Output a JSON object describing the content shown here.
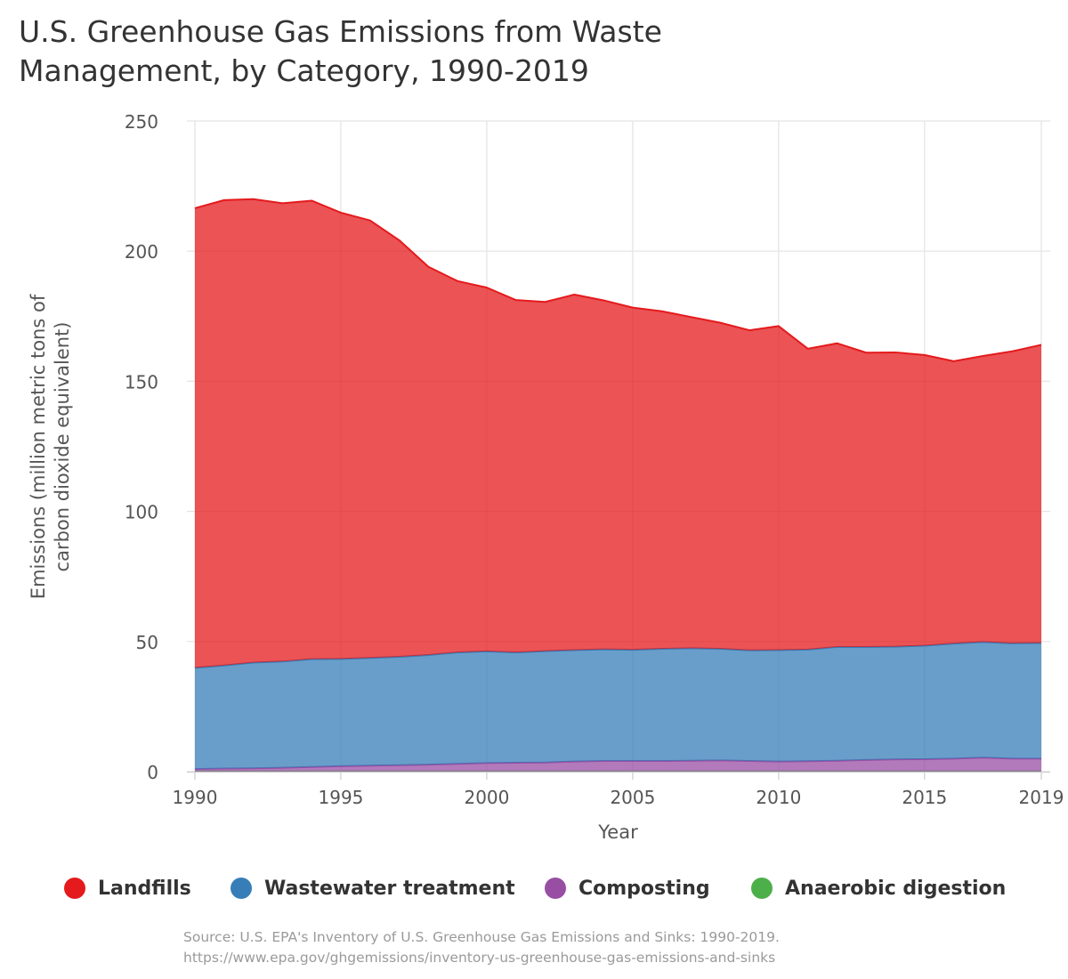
{
  "title_lines": [
    "U.S. Greenhouse Gas Emissions from Waste",
    "Management, by Category, 1990-2019"
  ],
  "source_lines": [
    "Source: U.S. EPA's Inventory of U.S. Greenhouse Gas Emissions and Sinks: 1990-2019.",
    "https://www.epa.gov/ghgemissions/inventory-us-greenhouse-gas-emissions-and-sinks"
  ],
  "chart_data": {
    "type": "area",
    "stacked": true,
    "title": "U.S. Greenhouse Gas Emissions from Waste Management, by Category, 1990-2019",
    "xlabel": "Year",
    "ylabel": "Emissions (million metric tons of carbon dioxide equivalent)",
    "ylim": [
      0,
      250
    ],
    "xlim": [
      1990,
      2019
    ],
    "x_ticks": [
      1990,
      1995,
      2000,
      2005,
      2010,
      2015,
      2019
    ],
    "y_ticks": [
      0,
      50,
      100,
      150,
      200,
      250
    ],
    "grid": true,
    "legend": "bottom",
    "x": [
      1990,
      1991,
      1992,
      1993,
      1994,
      1995,
      1996,
      1997,
      1998,
      1999,
      2000,
      2001,
      2002,
      2003,
      2004,
      2005,
      2006,
      2007,
      2008,
      2009,
      2010,
      2011,
      2012,
      2013,
      2014,
      2015,
      2016,
      2017,
      2018,
      2019
    ],
    "series": [
      {
        "name": "Anaerobic digestion",
        "color": "#4daf4a",
        "values": [
          0.1,
          0.1,
          0.1,
          0.1,
          0.1,
          0.1,
          0.1,
          0.1,
          0.1,
          0.1,
          0.1,
          0.1,
          0.1,
          0.1,
          0.1,
          0.1,
          0.1,
          0.1,
          0.1,
          0.1,
          0.1,
          0.1,
          0.1,
          0.1,
          0.1,
          0.1,
          0.1,
          0.1,
          0.1,
          0.1
        ]
      },
      {
        "name": "Composting",
        "color": "#984ea3",
        "values": [
          0.9,
          1.1,
          1.2,
          1.4,
          1.7,
          2.0,
          2.2,
          2.4,
          2.6,
          2.9,
          3.2,
          3.3,
          3.4,
          3.8,
          4.0,
          4.0,
          4.0,
          4.1,
          4.2,
          4.0,
          3.8,
          3.9,
          4.1,
          4.4,
          4.6,
          4.7,
          4.9,
          5.3,
          4.9,
          4.9
        ]
      },
      {
        "name": "Wastewater treatment",
        "color": "#377eb8",
        "values": [
          38.9,
          39.6,
          40.6,
          40.8,
          41.4,
          41.2,
          41.4,
          41.6,
          42.1,
          42.8,
          42.9,
          42.4,
          42.8,
          42.8,
          42.9,
          42.7,
          43.1,
          43.2,
          42.9,
          42.5,
          42.8,
          42.9,
          43.7,
          43.4,
          43.3,
          43.6,
          44.2,
          44.4,
          44.3,
          44.4
        ]
      },
      {
        "name": "Landfills",
        "color": "#e41a1c",
        "values": [
          176.6,
          178.8,
          178.1,
          176.1,
          176.2,
          171.5,
          168.1,
          160.1,
          149.2,
          142.7,
          139.8,
          135.4,
          134.2,
          136.6,
          134.1,
          131.5,
          129.7,
          127.3,
          125.3,
          123.0,
          124.5,
          115.6,
          116.7,
          113.1,
          113.1,
          111.7,
          108.5,
          109.9,
          112.2,
          114.6
        ]
      }
    ],
    "legend_order": [
      "Landfills",
      "Wastewater treatment",
      "Composting",
      "Anaerobic digestion"
    ]
  }
}
